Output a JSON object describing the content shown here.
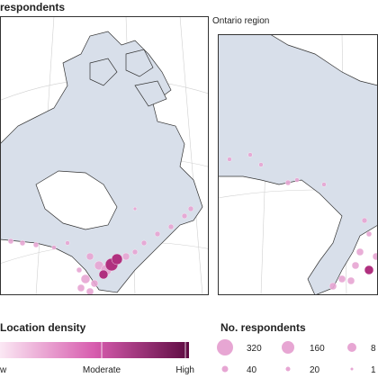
{
  "title": "respondents",
  "panel_label": "Ontario region",
  "density_legend": {
    "title": "Location density",
    "labels": [
      "w",
      "Moderate",
      "High"
    ]
  },
  "size_legend": {
    "title": "No. respondents",
    "labels": [
      "320",
      "160",
      "8",
      "40",
      "20",
      "1"
    ]
  }
}
